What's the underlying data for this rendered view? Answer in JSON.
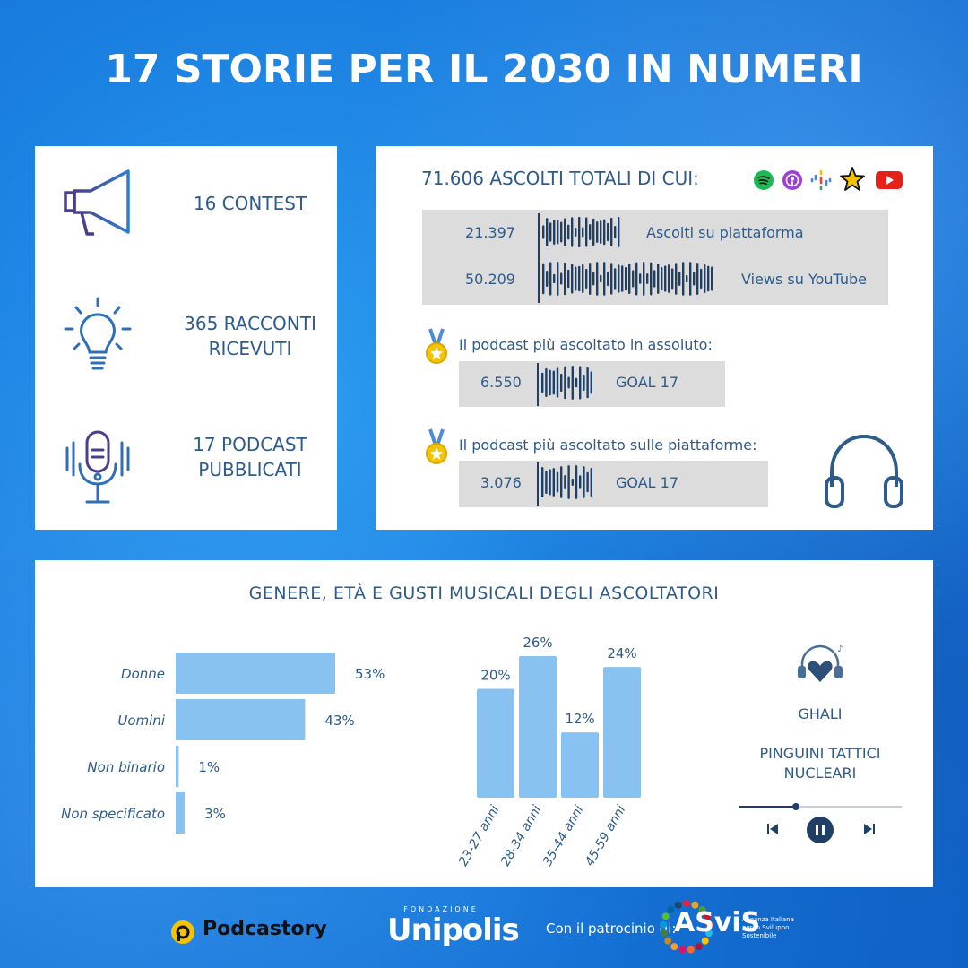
{
  "title": "17 STORIE PER IL 2030 IN NUMERI",
  "stats": [
    {
      "line1": "16 CONTEST",
      "line2": ""
    },
    {
      "line1": "365 RACCONTI",
      "line2": "RICEVUTI"
    },
    {
      "line1": "17 PODCAST",
      "line2": "PUBBLICATI"
    }
  ],
  "listens": {
    "heading": "71.606 ASCOLTI TOTALI DI CUI:",
    "platforms": [
      "spotify-icon",
      "apple-podcasts-icon",
      "google-podcasts-icon",
      "spreaker-icon",
      "youtube-icon"
    ],
    "rows": [
      {
        "value": "21.397",
        "label": "Ascolti su piattaforma"
      },
      {
        "value": "50.209",
        "label": "Views su YouTube"
      }
    ]
  },
  "top_podcasts": [
    {
      "caption": "Il podcast più ascoltato in assoluto:",
      "value": "6.550",
      "label": "GOAL 17"
    },
    {
      "caption": "Il podcast più ascoltato sulle piattaforme:",
      "value": "3.076",
      "label": "GOAL 17"
    }
  ],
  "audience": {
    "heading": "GENERE, ETÀ E GUSTI MUSICALI DEGLI ASCOLTATORI"
  },
  "chart_data": [
    {
      "type": "bar",
      "orientation": "horizontal",
      "categories": [
        "Donne",
        "Uomini",
        "Non binario",
        "Non specificato"
      ],
      "values": [
        53,
        43,
        1,
        3
      ],
      "value_labels": [
        "53%",
        "43%",
        "1%",
        "3%"
      ],
      "unit": "%",
      "xlim": [
        0,
        53
      ]
    },
    {
      "type": "bar",
      "orientation": "vertical",
      "categories": [
        "23-27 anni",
        "28-34 anni",
        "35-44 anni",
        "45-59 anni"
      ],
      "values": [
        20,
        26,
        12,
        24
      ],
      "value_labels": [
        "20%",
        "26%",
        "12%",
        "24%"
      ],
      "unit": "%",
      "ylim": [
        0,
        26
      ]
    }
  ],
  "music": {
    "artists": [
      "GHALI",
      "PINGUINI TATTICI",
      "NUCLEARI"
    ],
    "progress": 0.35
  },
  "footer": {
    "podcastory": "Podcastory",
    "fondazione": "FONDAZIONE",
    "unipolis": "Unipolis",
    "patrocinio": "Con il patrocinio di:",
    "asvis": "ASviS",
    "asvis_sub": [
      "Alleanza Italiana",
      "per lo Sviluppo",
      "Sostenibile"
    ]
  },
  "colors": {
    "accent_text": "#2d5b8c",
    "bar_fill": "#88c2f0",
    "waveform": "#1f3f66",
    "grey_box": "#dcdcdc",
    "podcastory_yellow": "#f5c400"
  }
}
